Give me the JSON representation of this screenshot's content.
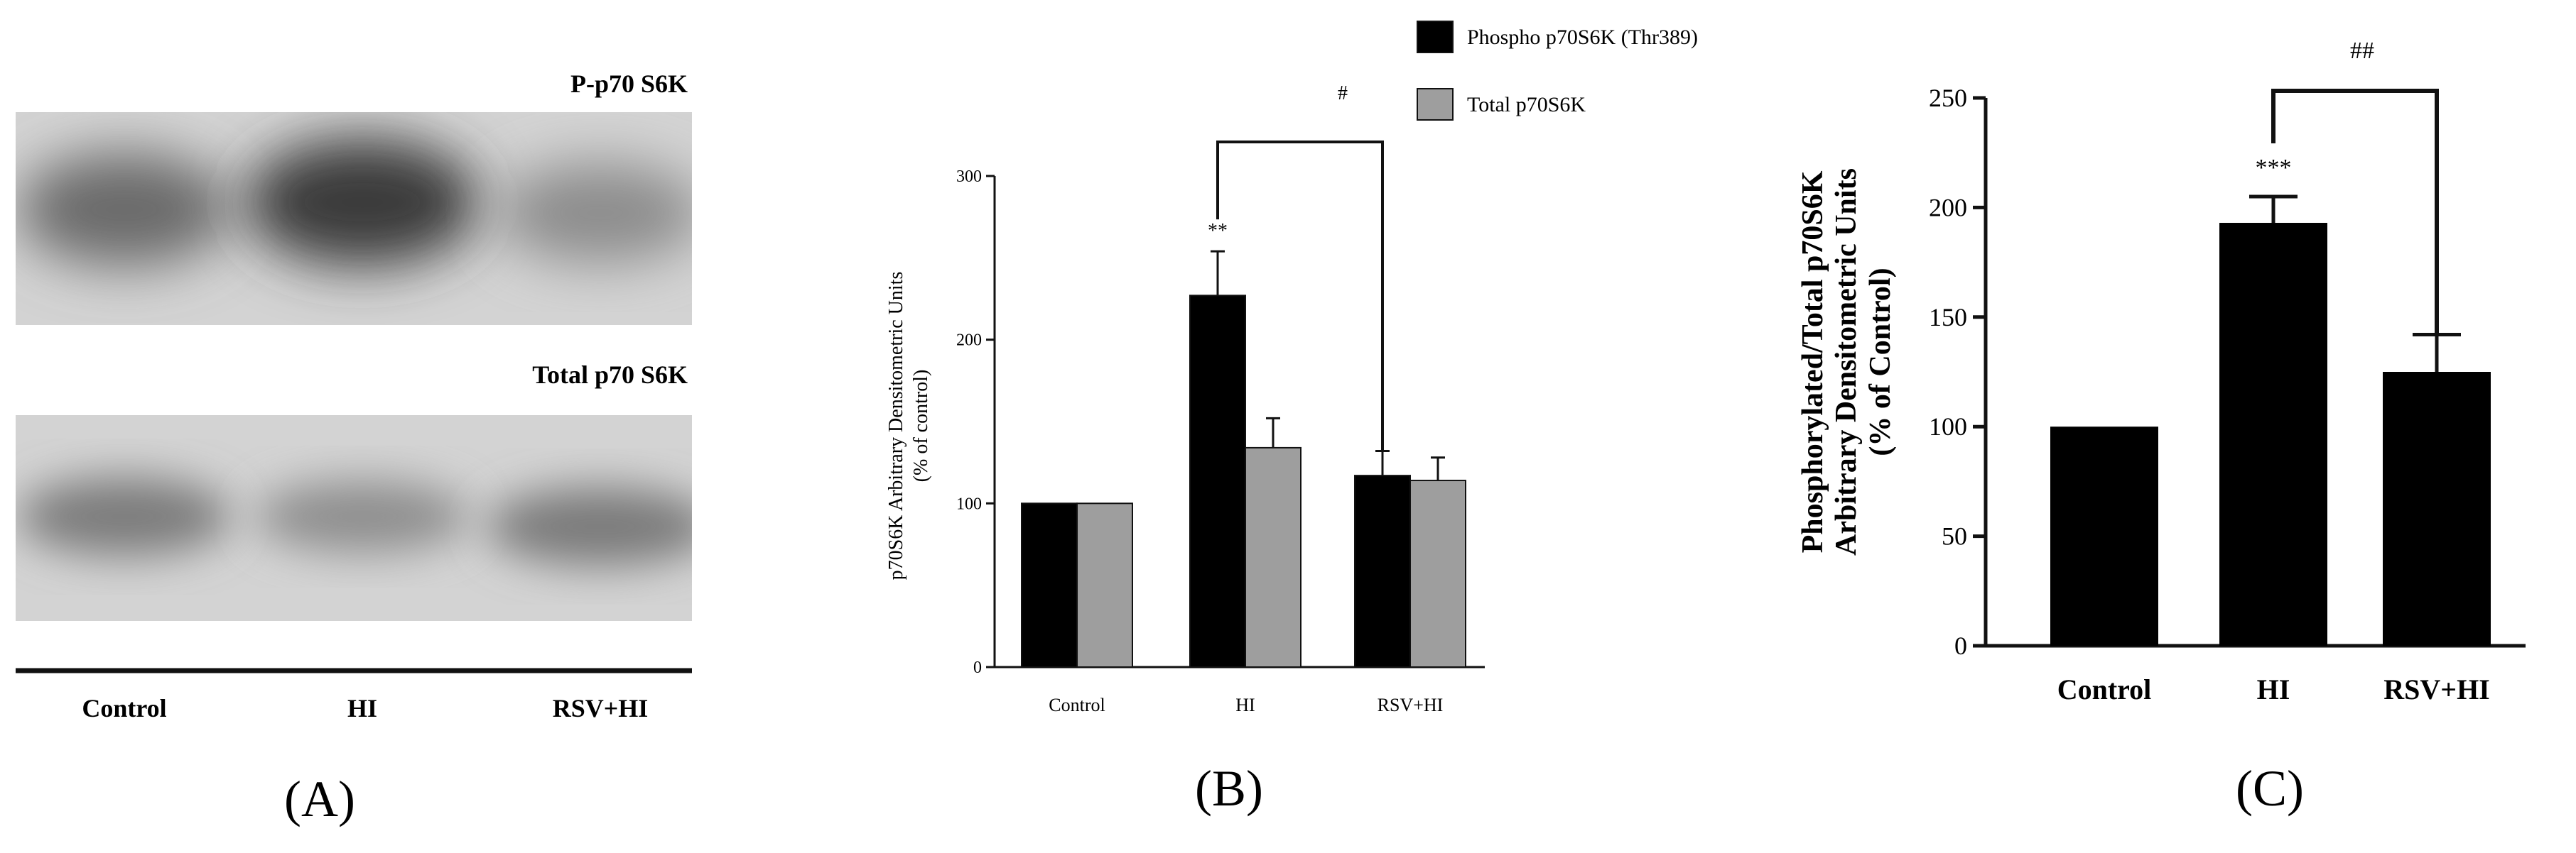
{
  "panel_a": {
    "blot_top_label": "P-p70 S6K",
    "blot_bottom_label": "Total p70 S6K",
    "lanes": [
      "Control",
      "HI",
      "RSV+HI"
    ],
    "panel_label": "(A)"
  },
  "chart_data": [
    {
      "type": "bar",
      "panel_label": "(B)",
      "categories": [
        "Control",
        "HI",
        "RSV+HI"
      ],
      "series": [
        {
          "name": "Phospho p70S6K (Thr389)",
          "values": [
            100,
            227,
            117
          ],
          "errors": [
            0,
            27,
            15
          ],
          "color": "#000000"
        },
        {
          "name": "Total p70S6K",
          "values": [
            100,
            134,
            114
          ],
          "errors": [
            0,
            18,
            14
          ],
          "color": "#9e9e9e"
        }
      ],
      "ylabel_line1": "p70S6K Arbitrary Densitometric Units",
      "ylabel_line2": "(% of control)",
      "ylim": [
        0,
        300
      ],
      "yticks": [
        0,
        100,
        200,
        300
      ],
      "annotations": {
        "sig_hi": "**",
        "bracket": "#"
      },
      "legend": "top-right"
    },
    {
      "type": "bar",
      "panel_label": "(C)",
      "categories": [
        "Control",
        "HI",
        "RSV+HI"
      ],
      "values": [
        100,
        193,
        125
      ],
      "errors": [
        0,
        12,
        17
      ],
      "color": "#000000",
      "ylabel_line1": "Phosphorylated/Total p70S6K",
      "ylabel_line2": "Arbitrary Densitometric Units",
      "ylabel_line3": "(% of Control)",
      "ylim": [
        0,
        250
      ],
      "yticks": [
        0,
        50,
        100,
        150,
        200,
        250
      ],
      "annotations": {
        "sig_hi": "***",
        "bracket": "##"
      }
    }
  ]
}
